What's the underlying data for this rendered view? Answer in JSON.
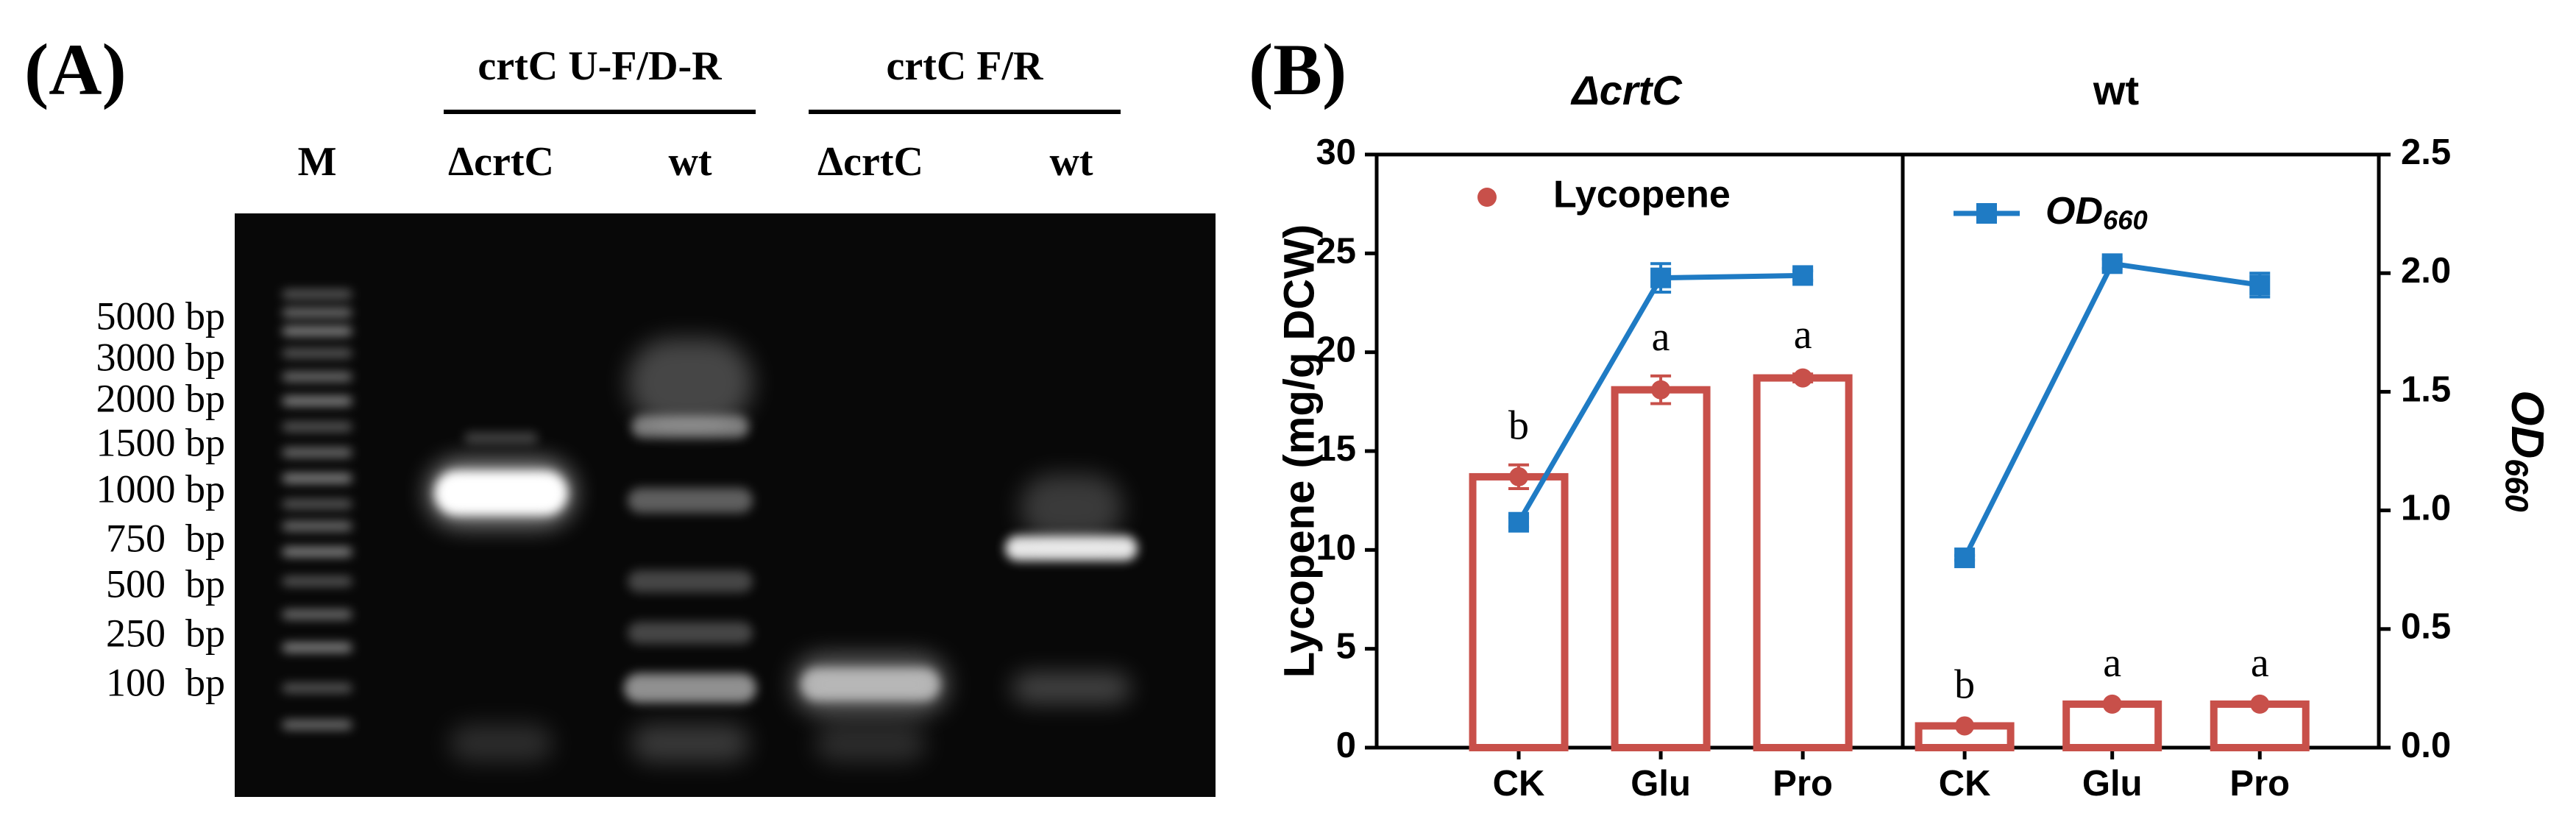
{
  "gel": {
    "title": "(A)",
    "groups": [
      "crtC U-F/D-R",
      "crtC F/R"
    ],
    "lanes": [
      "M",
      "ΔcrtC",
      "wt",
      "ΔcrtC",
      "wt"
    ],
    "ladder": [
      "5000 bp",
      "3000 bp",
      "2000 bp",
      "1500 bp",
      "1000 bp",
      "750  bp",
      "500  bp",
      "250  bp",
      "100  bp"
    ]
  },
  "chart_data": {
    "type": "bar",
    "title": "(B)",
    "ylabel": "Lycopene (mg/g DCW)",
    "y2label": "OD660",
    "panels": [
      "ΔcrtC",
      "wt"
    ],
    "categories": [
      "CK",
      "Glu",
      "Pro",
      "CK",
      "Glu",
      "Pro"
    ],
    "ylim": [
      0,
      30
    ],
    "yticks": [
      0,
      5,
      10,
      15,
      20,
      25,
      30
    ],
    "y2lim": [
      0,
      2.5
    ],
    "y2ticks": [
      {
        "value": 0,
        "label": "0.0"
      },
      0.5,
      {
        "value": 1,
        "label": "1.0"
      },
      1.5,
      {
        "value": 2,
        "label": "2.0"
      },
      2.5
    ],
    "series": [
      {
        "name": "Lycopene",
        "color": "#c8504a",
        "type": "bar",
        "values": [
          13.7,
          18.1,
          18.7,
          1.1,
          2.2,
          2.2
        ],
        "errors": [
          0.6,
          0.7,
          0.2,
          0.1,
          0.1,
          0.1
        ],
        "annotations": [
          "b",
          "a",
          "a",
          "b",
          "a",
          "a"
        ]
      },
      {
        "name": "OD660",
        "color": "#1f7bc4",
        "type": "line",
        "axis": "y2",
        "values": [
          0.95,
          1.98,
          1.99,
          0.8,
          2.04,
          1.95
        ],
        "errors": [
          0.02,
          0.06,
          0.02,
          0.01,
          0.02,
          0.05
        ]
      }
    ]
  }
}
